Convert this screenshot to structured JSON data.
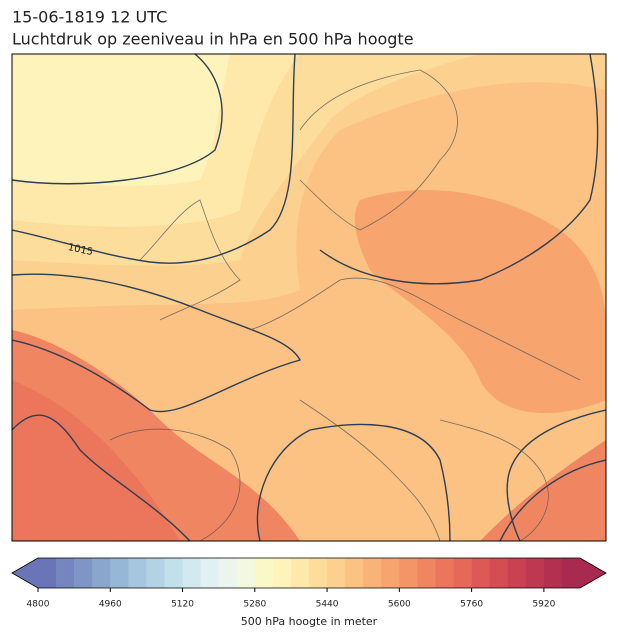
{
  "title": "15-06-1819 12 UTC",
  "subtitle": "Luchtdruk op zeeniveau in hPa en 500 hPa hoogte",
  "contour_labels": [
    "1015"
  ],
  "colorbar": {
    "label": "500 hPa hoogte in meter",
    "lim": [
      4800,
      6000
    ],
    "ticks": [
      4800,
      4960,
      5120,
      5280,
      5440,
      5600,
      5760,
      5920
    ],
    "extend": "both",
    "colors": [
      "#6a74b8",
      "#7585c0",
      "#7f95c6",
      "#8aa6cd",
      "#97b7d6",
      "#a5c6de",
      "#b3d3e5",
      "#c2dfec",
      "#d1e9f1",
      "#e0f0f3",
      "#ebf5ee",
      "#f3f8e0",
      "#fbf8c8",
      "#fff3bc",
      "#fee9ab",
      "#fddd9c",
      "#fcd08f",
      "#fbc283",
      "#f9b378",
      "#f7a46f",
      "#f49567",
      "#f08561",
      "#eb765c",
      "#e56858",
      "#dd5955",
      "#d44d53",
      "#ca4252",
      "#bf3852",
      "#b33051",
      "#a82a50"
    ]
  }
}
